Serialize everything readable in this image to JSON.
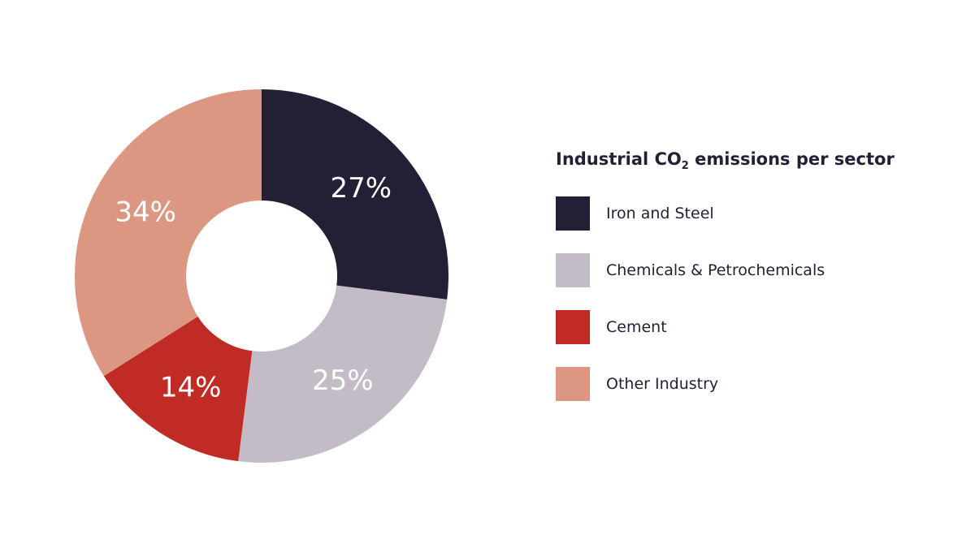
{
  "chart_data": {
    "type": "pie",
    "title": "Industrial CO",
    "title_subscript": "2",
    "title_suffix": " emissions per sector",
    "categories": [
      "Iron and Steel",
      "Chemicals & Petrochemicals",
      "Cement",
      "Other Industry"
    ],
    "values": [
      27,
      25,
      14,
      34
    ],
    "value_labels": [
      "27%",
      "25%",
      "14%",
      "34%"
    ],
    "colors": [
      "#231f35",
      "#c3bcc7",
      "#c02b26",
      "#dc9783"
    ],
    "donut": true,
    "legend_placement": "right"
  }
}
